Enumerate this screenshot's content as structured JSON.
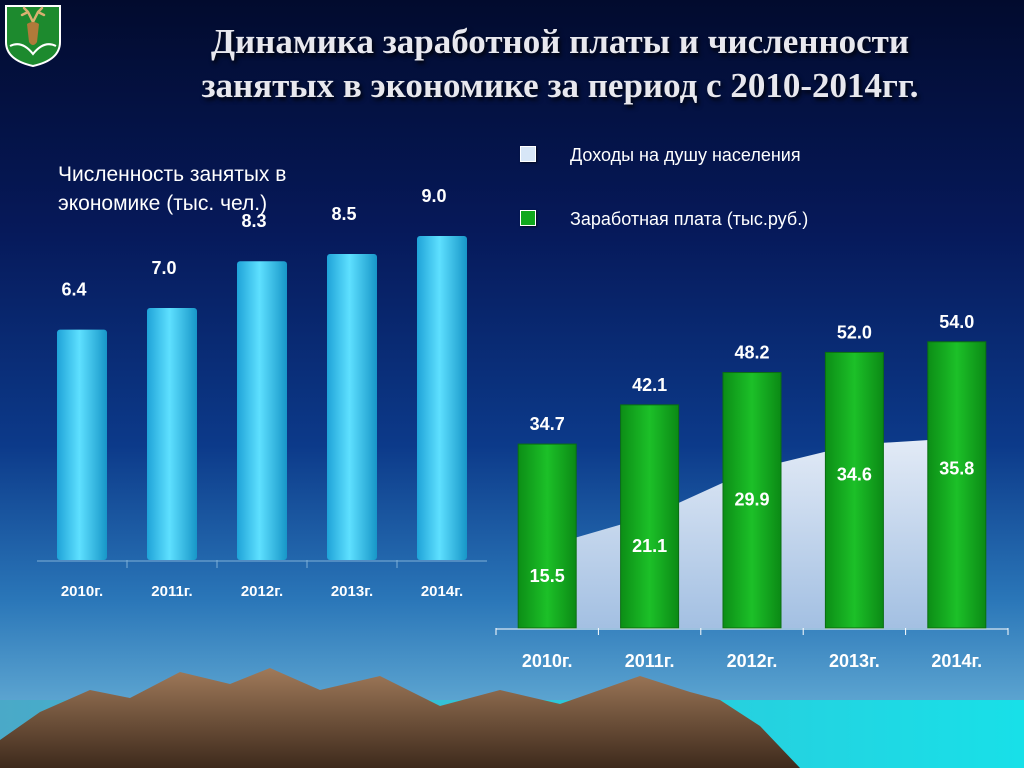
{
  "title": {
    "line1": "Динамика заработной платы и численности",
    "line2": "занятых в экономике за период с 2010-2014гг."
  },
  "colors": {
    "employment_bar": "#22c8f0",
    "salary_bar": "#10a81c",
    "income_area": "#d7e6f7"
  },
  "icons": {
    "emblem": "deer-coat-of-arms-icon"
  },
  "chart_data": [
    {
      "type": "bar",
      "title": "Численность занятых в экономике (тыс. чел.)",
      "categories": [
        "2010г.",
        "2011г.",
        "2012г.",
        "2013г.",
        "2014г."
      ],
      "values": [
        6.4,
        7.0,
        8.3,
        8.5,
        9.0
      ],
      "data_labels": [
        "6.4",
        "7.0",
        "8.3",
        "8.5",
        "9.0"
      ],
      "ylim": [
        0,
        10
      ],
      "grid": false
    },
    {
      "type": "bar",
      "categories": [
        "2010г.",
        "2011г.",
        "2012г.",
        "2013г.",
        "2014г."
      ],
      "series": [
        {
          "name": "Доходы на душу населения",
          "type": "area",
          "values": [
            15.5,
            21.1,
            29.9,
            34.6,
            35.8
          ],
          "data_labels": [
            "15.5",
            "21.1",
            "29.9",
            "34.6",
            "35.8"
          ]
        },
        {
          "name": "Заработная плата (тыс.руб.)",
          "type": "bar",
          "values": [
            34.7,
            42.1,
            48.2,
            52.0,
            54.0
          ],
          "data_labels": [
            "34.7",
            "42.1",
            "48.2",
            "52.0",
            "54.0"
          ]
        }
      ],
      "ylim": [
        0,
        60
      ],
      "grid": false,
      "legend_position": "top-right"
    }
  ]
}
